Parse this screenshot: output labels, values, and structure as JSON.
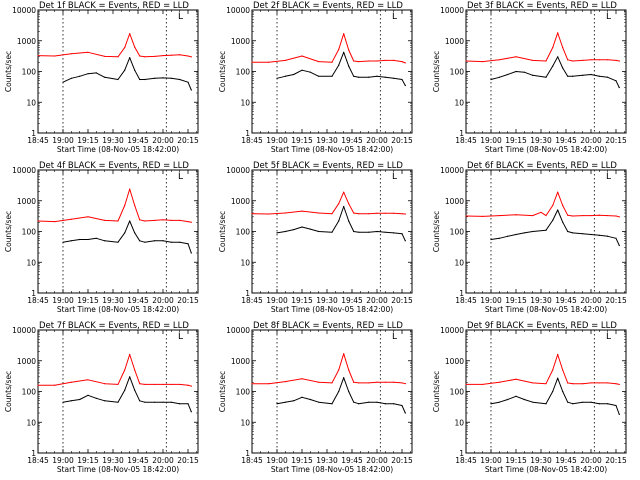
{
  "colors": {
    "events": "#000000",
    "lld": "#ff0000",
    "background": "#ffffff",
    "axes": "#000000"
  },
  "shared": {
    "x_tick_labels": [
      "18:45",
      "19:00",
      "19:15",
      "19:30",
      "19:45",
      "20:00",
      "20:15"
    ],
    "y_tick_labels": [
      "1",
      "10",
      "100",
      "1000",
      "10000"
    ],
    "ylabel": "Counts/sec",
    "xlabel": "Start Time (08-Nov-05 18:42:00)",
    "marker_symbol": "L"
  },
  "chart_data": [
    {
      "type": "line",
      "title": "Det 1f BLACK = Events, RED = LLD",
      "x_unit": "minutes after 18:45",
      "xlim": [
        0,
        96
      ],
      "yscale": "log",
      "ylim": [
        1,
        10000
      ],
      "vertical_dashed_lines_x": [
        15,
        77
      ],
      "series": [
        {
          "color": "#ff0000",
          "x": [
            0,
            10,
            20,
            30,
            40,
            48,
            52,
            55,
            58,
            61,
            64,
            70,
            75,
            80,
            85,
            90,
            92
          ],
          "values": [
            330,
            320,
            380,
            420,
            310,
            300,
            600,
            1700,
            620,
            320,
            300,
            310,
            330,
            340,
            350,
            320,
            300
          ]
        },
        {
          "color": "#000000",
          "x": [
            15,
            20,
            25,
            30,
            35,
            40,
            48,
            52,
            55,
            58,
            61,
            64,
            70,
            75,
            80,
            85,
            90,
            92
          ],
          "values": [
            45,
            60,
            70,
            85,
            90,
            65,
            55,
            110,
            280,
            110,
            55,
            55,
            60,
            62,
            60,
            55,
            45,
            25
          ]
        }
      ]
    },
    {
      "type": "line",
      "title": "Det 2f BLACK = Events, RED = LLD",
      "x_unit": "minutes after 18:45",
      "xlim": [
        0,
        96
      ],
      "yscale": "log",
      "ylim": [
        1,
        10000
      ],
      "vertical_dashed_lines_x": [
        15,
        77
      ],
      "series": [
        {
          "color": "#ff0000",
          "x": [
            0,
            10,
            20,
            30,
            40,
            48,
            52,
            55,
            58,
            61,
            64,
            70,
            75,
            80,
            85,
            90,
            92
          ],
          "values": [
            200,
            200,
            230,
            320,
            210,
            200,
            520,
            1700,
            500,
            220,
            210,
            220,
            220,
            230,
            230,
            210,
            190
          ]
        },
        {
          "color": "#000000",
          "x": [
            15,
            20,
            25,
            30,
            35,
            40,
            48,
            52,
            55,
            58,
            61,
            64,
            70,
            75,
            80,
            85,
            90,
            92
          ],
          "values": [
            60,
            70,
            80,
            110,
            95,
            70,
            70,
            160,
            420,
            150,
            70,
            65,
            65,
            70,
            65,
            60,
            55,
            35
          ]
        }
      ]
    },
    {
      "type": "line",
      "title": "Det 3f BLACK = Events, RED = LLD",
      "x_unit": "minutes after 18:45",
      "xlim": [
        0,
        96
      ],
      "yscale": "log",
      "ylim": [
        1,
        10000
      ],
      "vertical_dashed_lines_x": [
        15,
        77
      ],
      "series": [
        {
          "color": "#ff0000",
          "x": [
            0,
            10,
            20,
            30,
            40,
            48,
            52,
            55,
            58,
            61,
            64,
            70,
            75,
            80,
            85,
            90,
            92
          ],
          "values": [
            220,
            210,
            240,
            300,
            230,
            220,
            600,
            1800,
            600,
            240,
            220,
            230,
            240,
            240,
            240,
            230,
            220
          ]
        },
        {
          "color": "#000000",
          "x": [
            15,
            20,
            25,
            30,
            35,
            40,
            48,
            52,
            55,
            58,
            61,
            64,
            70,
            75,
            80,
            85,
            90,
            92
          ],
          "values": [
            55,
            65,
            80,
            100,
            95,
            75,
            65,
            150,
            300,
            130,
            70,
            70,
            75,
            80,
            70,
            65,
            50,
            30
          ]
        }
      ]
    },
    {
      "type": "line",
      "title": "Det 4f BLACK = Events, RED = LLD",
      "x_unit": "minutes after 18:45",
      "xlim": [
        0,
        96
      ],
      "yscale": "log",
      "ylim": [
        1,
        10000
      ],
      "vertical_dashed_lines_x": [
        15,
        77
      ],
      "series": [
        {
          "color": "#ff0000",
          "x": [
            0,
            10,
            20,
            30,
            40,
            48,
            52,
            55,
            58,
            61,
            64,
            70,
            75,
            80,
            85,
            90,
            92
          ],
          "values": [
            220,
            210,
            250,
            300,
            230,
            220,
            700,
            2400,
            700,
            240,
            220,
            230,
            240,
            230,
            230,
            210,
            200
          ]
        },
        {
          "color": "#000000",
          "x": [
            15,
            20,
            25,
            30,
            35,
            40,
            48,
            52,
            55,
            58,
            61,
            64,
            70,
            75,
            80,
            85,
            90,
            92
          ],
          "values": [
            45,
            50,
            55,
            55,
            60,
            50,
            45,
            90,
            220,
            90,
            50,
            45,
            50,
            50,
            45,
            45,
            40,
            20
          ]
        }
      ]
    },
    {
      "type": "line",
      "title": "Det 5f BLACK = Events, RED = LLD",
      "x_unit": "minutes after 18:45",
      "xlim": [
        0,
        96
      ],
      "yscale": "log",
      "ylim": [
        1,
        10000
      ],
      "vertical_dashed_lines_x": [
        15,
        77
      ],
      "series": [
        {
          "color": "#ff0000",
          "x": [
            0,
            10,
            20,
            30,
            40,
            48,
            52,
            55,
            58,
            61,
            64,
            70,
            75,
            80,
            85,
            90,
            92
          ],
          "values": [
            380,
            370,
            400,
            460,
            400,
            380,
            800,
            1900,
            800,
            400,
            380,
            380,
            390,
            390,
            390,
            380,
            370
          ]
        },
        {
          "color": "#000000",
          "x": [
            15,
            20,
            25,
            30,
            35,
            40,
            48,
            52,
            55,
            58,
            61,
            64,
            70,
            75,
            80,
            85,
            90,
            92
          ],
          "values": [
            90,
            100,
            115,
            140,
            120,
            100,
            95,
            220,
            650,
            220,
            100,
            95,
            95,
            100,
            95,
            90,
            85,
            50
          ]
        }
      ]
    },
    {
      "type": "line",
      "title": "Det 6f BLACK = Events, RED = LLD",
      "x_unit": "minutes after 18:45",
      "xlim": [
        0,
        96
      ],
      "yscale": "log",
      "ylim": [
        1,
        10000
      ],
      "vertical_dashed_lines_x": [
        15,
        77
      ],
      "series": [
        {
          "color": "#ff0000",
          "x": [
            0,
            10,
            20,
            30,
            40,
            45,
            48,
            52,
            55,
            58,
            61,
            64,
            70,
            75,
            80,
            85,
            90,
            92
          ],
          "values": [
            320,
            310,
            330,
            350,
            330,
            420,
            330,
            700,
            1900,
            700,
            340,
            320,
            330,
            330,
            340,
            330,
            320,
            300
          ]
        },
        {
          "color": "#000000",
          "x": [
            15,
            20,
            25,
            30,
            35,
            40,
            48,
            52,
            55,
            58,
            61,
            64,
            70,
            75,
            80,
            85,
            90,
            92
          ],
          "values": [
            55,
            60,
            70,
            80,
            90,
            100,
            110,
            230,
            500,
            200,
            100,
            90,
            85,
            80,
            75,
            70,
            60,
            35
          ]
        }
      ]
    },
    {
      "type": "line",
      "title": "Det 7f BLACK = Events, RED = LLD",
      "x_unit": "minutes after 18:45",
      "xlim": [
        0,
        96
      ],
      "yscale": "log",
      "ylim": [
        1,
        10000
      ],
      "vertical_dashed_lines_x": [
        15,
        77
      ],
      "series": [
        {
          "color": "#ff0000",
          "x": [
            0,
            10,
            20,
            30,
            40,
            48,
            52,
            55,
            58,
            61,
            64,
            70,
            75,
            80,
            85,
            90,
            92
          ],
          "values": [
            160,
            160,
            200,
            240,
            180,
            170,
            500,
            1600,
            500,
            180,
            170,
            170,
            170,
            170,
            170,
            160,
            150
          ]
        },
        {
          "color": "#000000",
          "x": [
            15,
            20,
            25,
            30,
            35,
            40,
            48,
            52,
            55,
            58,
            61,
            64,
            70,
            75,
            80,
            85,
            90,
            92
          ],
          "values": [
            45,
            50,
            55,
            75,
            60,
            50,
            45,
            110,
            300,
            110,
            50,
            45,
            45,
            45,
            45,
            40,
            40,
            22
          ]
        }
      ]
    },
    {
      "type": "line",
      "title": "Det 8f BLACK = Events, RED = LLD",
      "x_unit": "minutes after 18:45",
      "xlim": [
        0,
        96
      ],
      "yscale": "log",
      "ylim": [
        1,
        10000
      ],
      "vertical_dashed_lines_x": [
        15,
        77
      ],
      "series": [
        {
          "color": "#ff0000",
          "x": [
            0,
            10,
            20,
            30,
            40,
            48,
            52,
            55,
            58,
            61,
            64,
            70,
            75,
            80,
            85,
            90,
            92
          ],
          "values": [
            180,
            180,
            210,
            260,
            200,
            190,
            500,
            1700,
            500,
            200,
            190,
            190,
            200,
            200,
            200,
            190,
            180
          ]
        },
        {
          "color": "#000000",
          "x": [
            15,
            20,
            25,
            30,
            35,
            40,
            48,
            52,
            55,
            58,
            61,
            64,
            70,
            75,
            80,
            85,
            90,
            92
          ],
          "values": [
            40,
            45,
            50,
            65,
            55,
            45,
            40,
            100,
            280,
            100,
            45,
            40,
            45,
            45,
            40,
            40,
            35,
            20
          ]
        }
      ]
    },
    {
      "type": "line",
      "title": "Det 9f BLACK = Events, RED = LLD",
      "x_unit": "minutes after 18:45",
      "xlim": [
        0,
        96
      ],
      "yscale": "log",
      "ylim": [
        1,
        10000
      ],
      "vertical_dashed_lines_x": [
        15,
        77
      ],
      "series": [
        {
          "color": "#ff0000",
          "x": [
            0,
            10,
            20,
            30,
            40,
            48,
            52,
            55,
            58,
            61,
            64,
            70,
            75,
            80,
            85,
            90,
            92
          ],
          "values": [
            170,
            170,
            200,
            250,
            190,
            180,
            500,
            1600,
            500,
            190,
            180,
            180,
            190,
            190,
            190,
            180,
            170
          ]
        },
        {
          "color": "#000000",
          "x": [
            15,
            20,
            25,
            30,
            35,
            40,
            48,
            52,
            55,
            58,
            61,
            64,
            70,
            75,
            80,
            85,
            90,
            92
          ],
          "values": [
            40,
            45,
            55,
            70,
            55,
            45,
            40,
            100,
            270,
            100,
            45,
            40,
            45,
            45,
            40,
            40,
            35,
            18
          ]
        }
      ]
    }
  ]
}
